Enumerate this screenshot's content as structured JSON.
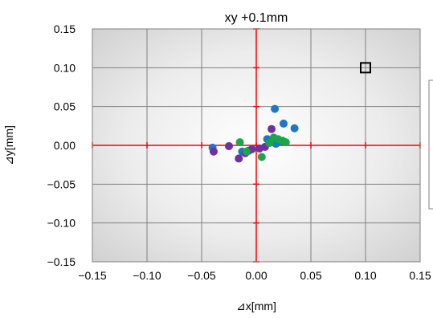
{
  "chart_data": {
    "type": "scatter",
    "title": "xy +0.1mm",
    "xlabel": "⊿x[mm]",
    "ylabel": "⊿y[mm]",
    "xlim": [
      -0.15,
      0.15
    ],
    "ylim": [
      -0.15,
      0.15
    ],
    "xticks": [
      "−0.15",
      "−0.10",
      "−0.05",
      "0.00",
      "0.05",
      "0.10",
      "0.15"
    ],
    "yticks": [
      "0.15",
      "0.10",
      "0.05",
      "0.00",
      "−0.05",
      "−0.10",
      "−0.15"
    ],
    "tick_values": [
      -0.15,
      -0.1,
      -0.05,
      0.0,
      0.05,
      0.1,
      0.15
    ],
    "grid": true,
    "target": {
      "x": 0.1,
      "y": 0.1
    },
    "crosshair_color": "#ff0000",
    "series": [
      {
        "color": "#1f77c4",
        "points": [
          [
            0.017,
            0.047
          ],
          [
            0.025,
            0.028
          ],
          [
            0.035,
            0.022
          ],
          [
            0.01,
            0.008
          ],
          [
            0.018,
            0.002
          ],
          [
            0.022,
            0.005
          ],
          [
            -0.04,
            -0.003
          ],
          [
            -0.013,
            -0.008
          ]
        ]
      },
      {
        "color": "#7030a0",
        "points": [
          [
            0.014,
            0.021
          ],
          [
            -0.025,
            -0.001
          ],
          [
            -0.007,
            -0.007
          ],
          [
            0.003,
            -0.004
          ],
          [
            0.008,
            -0.002
          ],
          [
            -0.039,
            -0.008
          ],
          [
            -0.016,
            -0.017
          ],
          [
            -0.01,
            -0.01
          ],
          [
            -0.004,
            -0.005
          ]
        ]
      },
      {
        "color": "#1aa64a",
        "points": [
          [
            -0.015,
            0.004
          ],
          [
            0.016,
            0.01
          ],
          [
            0.024,
            0.006
          ],
          [
            0.027,
            0.004
          ],
          [
            0.005,
            -0.015
          ],
          [
            -0.009,
            -0.008
          ],
          [
            0.012,
            0.003
          ],
          [
            0.02,
            0.008
          ]
        ]
      }
    ]
  }
}
